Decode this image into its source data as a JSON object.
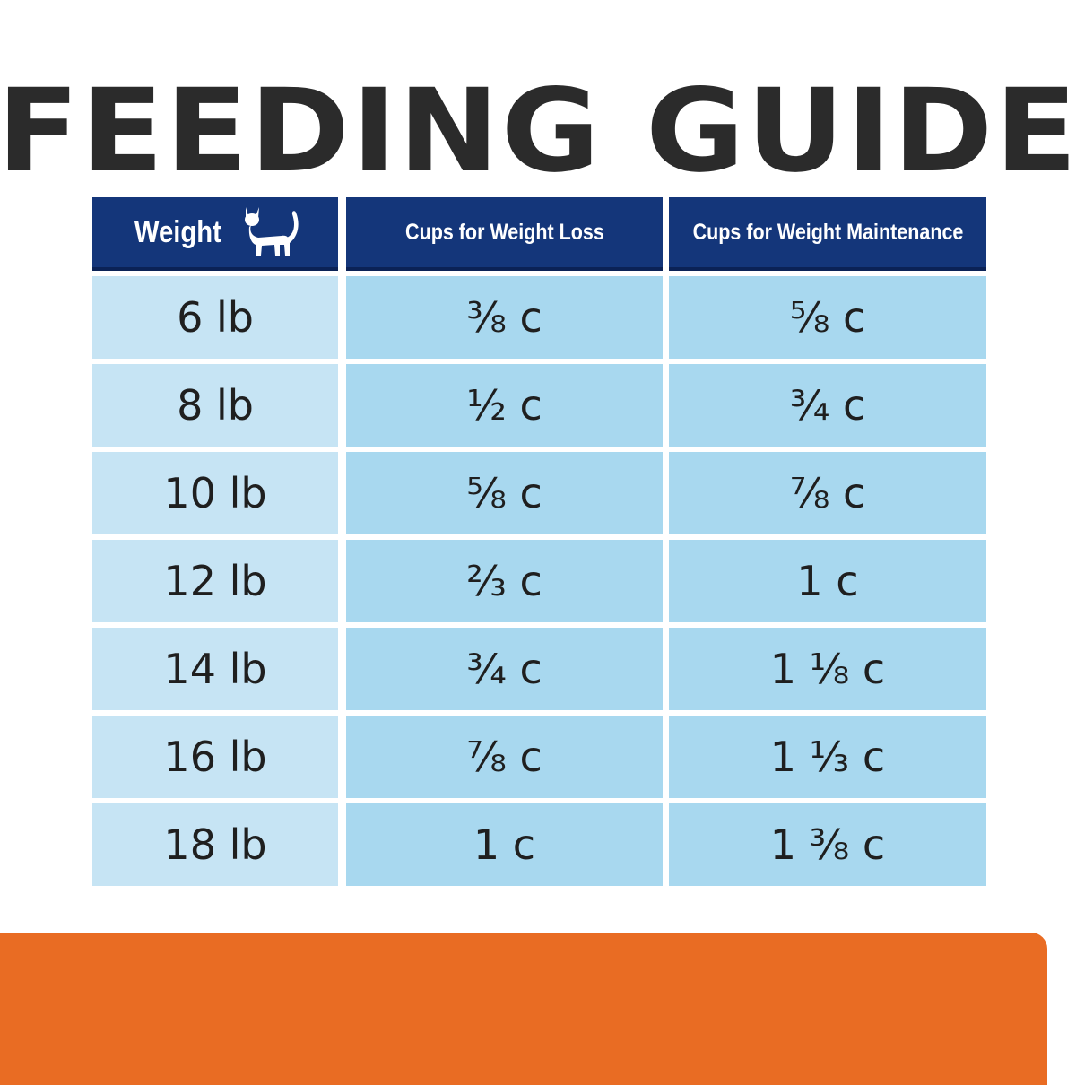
{
  "title": "FEEDING GUIDE",
  "table": {
    "headers": {
      "weight": "Weight",
      "weight_icon": "cat-icon",
      "loss": "Cups for Weight Loss",
      "maintenance": "Cups for Weight Maintenance"
    },
    "rows": [
      {
        "weight": "6 lb",
        "loss": "⅜ c",
        "maintenance": "⅝ c"
      },
      {
        "weight": "8 lb",
        "loss": "½ c",
        "maintenance": "¾ c"
      },
      {
        "weight": "10 lb",
        "loss": "⅝ c",
        "maintenance": "⅞ c"
      },
      {
        "weight": "12 lb",
        "loss": "⅔ c",
        "maintenance": "1 c"
      },
      {
        "weight": "14 lb",
        "loss": "¾ c",
        "maintenance": "1 ⅛ c"
      },
      {
        "weight": "16 lb",
        "loss": "⅞ c",
        "maintenance": "1 ⅓ c"
      },
      {
        "weight": "18 lb",
        "loss": "1 c",
        "maintenance": "1 ⅜ c"
      }
    ]
  },
  "colors": {
    "header_bg": "#14367a",
    "weight_col_bg": "#c6e4f4",
    "cups_col_bg": "#a8d8ef",
    "accent_orange": "#e96c23",
    "title_text": "#2b2b2b"
  }
}
